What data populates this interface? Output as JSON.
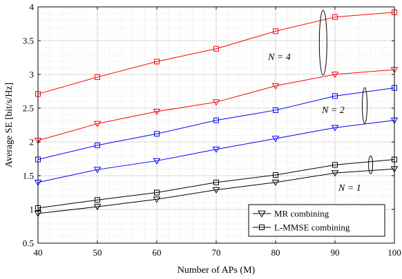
{
  "chart_data": {
    "type": "line",
    "xlabel": "Number of APs (M)",
    "ylabel": "Average SE [bit/s/Hz]",
    "xlim": [
      40,
      100
    ],
    "ylim": [
      0.5,
      4
    ],
    "xticks": [
      40,
      50,
      60,
      70,
      80,
      90,
      100
    ],
    "yticks": [
      0.5,
      1,
      1.5,
      2,
      2.5,
      3,
      3.5,
      4
    ],
    "grid": "major and minor, dotted",
    "x": [
      40,
      50,
      60,
      70,
      80,
      90,
      100
    ],
    "series": [
      {
        "group": "N = 4",
        "estimator": "L-MMSE combining",
        "marker": "square",
        "color": "#ff0000",
        "values": [
          2.71,
          2.96,
          3.19,
          3.38,
          3.64,
          3.85,
          3.92
        ]
      },
      {
        "group": "N = 4",
        "estimator": "MR combining",
        "marker": "triangle-down",
        "color": "#ff0000",
        "values": [
          2.02,
          2.27,
          2.45,
          2.59,
          2.83,
          3.0,
          3.07
        ]
      },
      {
        "group": "N = 2",
        "estimator": "L-MMSE combining",
        "marker": "square",
        "color": "#0000ff",
        "values": [
          1.74,
          1.95,
          2.12,
          2.32,
          2.47,
          2.68,
          2.8
        ]
      },
      {
        "group": "N = 2",
        "estimator": "MR combining",
        "marker": "triangle-down",
        "color": "#0000ff",
        "values": [
          1.4,
          1.59,
          1.72,
          1.89,
          2.05,
          2.21,
          2.32
        ]
      },
      {
        "group": "N = 1",
        "estimator": "L-MMSE combining",
        "marker": "square",
        "color": "#000000",
        "values": [
          1.02,
          1.14,
          1.25,
          1.4,
          1.51,
          1.66,
          1.74
        ]
      },
      {
        "group": "N = 1",
        "estimator": "MR combining",
        "marker": "triangle-down",
        "color": "#000000",
        "values": [
          0.94,
          1.04,
          1.15,
          1.29,
          1.4,
          1.54,
          1.6
        ]
      }
    ],
    "legend": {
      "placement": "bottom-right",
      "entries": [
        {
          "label": "MR combining",
          "marker": "triangle-down"
        },
        {
          "label": "L-MMSE combining",
          "marker": "square"
        }
      ]
    },
    "annotations": [
      {
        "text": "N = 4",
        "x": 88,
        "y_center": 3.47
      },
      {
        "text": "N = 2",
        "x": 95,
        "y_center": 2.54
      },
      {
        "text": "N = 1",
        "x": 96,
        "y_center": 1.66
      }
    ]
  }
}
